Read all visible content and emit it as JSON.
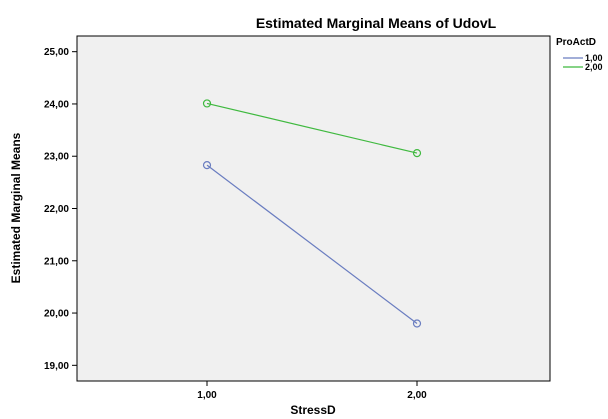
{
  "chart_data": {
    "type": "line",
    "title": "Estimated Marginal Means of UdovL",
    "xlabel": "StressD",
    "ylabel": "Estimated Marginal Means",
    "categories": [
      "1,00",
      "2,00"
    ],
    "ylim": [
      18.7,
      25.3
    ],
    "yticks": [
      "19,00",
      "20,00",
      "21,00",
      "22,00",
      "23,00",
      "24,00",
      "25,00"
    ],
    "grid": false,
    "legend_title": "ProActD",
    "legend_position": "right",
    "background_color": "#f0f0f0",
    "series": [
      {
        "name": "1,00",
        "color": "#6a7dc0",
        "values": [
          22.83,
          19.8
        ]
      },
      {
        "name": "2,00",
        "color": "#3fb93f",
        "values": [
          24.01,
          23.06
        ]
      }
    ]
  }
}
